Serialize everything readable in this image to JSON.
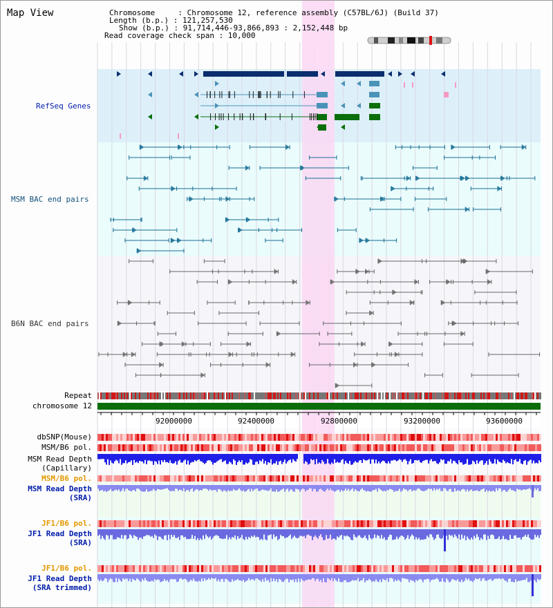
{
  "header": {
    "title": "Map View",
    "info_lines": [
      "Chromosome     : Chromosome 12, reference assembly (C57BL/6J) (Build 37)",
      "Length (b.p.) : 121,257,530",
      "Show (b.p.) : 91,714,446-93,866,893 : 2,152,448 bp",
      "Read coverage check span : 10,000"
    ]
  },
  "tracks": {
    "refseq": "RefSeq Genes",
    "msm_bac": "MSM BAC end pairs",
    "b6n_bac": "B6N BAC end pairs",
    "repeat": "Repeat",
    "chromosome": "chromosome 12",
    "dbsnp": "dbSNP(Mouse)",
    "msm_b6_pol_1": "MSM/B6 pol.",
    "msm_read_depth_cap_1": "MSM Read Depth",
    "msm_read_depth_cap_2": "(Capillary)",
    "msm_b6_pol_2": "MSM/B6 pol.",
    "msm_read_depth_sra_1": "MSM Read Depth",
    "msm_read_depth_sra_2": "(SRA)",
    "jf1_b6_pol_1": "JF1/B6 pol.",
    "jf1_read_depth_sra_1": "JF1 Read Depth",
    "jf1_read_depth_sra_2": "(SRA)",
    "jf1_b6_pol_2": "JF1/B6 pol.",
    "jf1_read_depth_trim_1": "JF1 Read Depth",
    "jf1_read_depth_trim_2": "(SRA trimmed)"
  },
  "axis": {
    "ticks": [
      "92000000",
      "92400000",
      "92800000",
      "93200000",
      "93600000"
    ]
  },
  "colors": {
    "highlight": "#fad8f3",
    "refseq_bg": "#ddf0fa",
    "msm_bac_bg": "#eafcfc",
    "gene_dark": "#0a2e6e",
    "gene_teal": "#4a93b8",
    "gene_green": "#0b6e0b",
    "msm_bac_line": "#176d94",
    "b6n_bac_line": "#666666",
    "chromosome": "#0b6e0b",
    "label_blue": "#001caa",
    "label_teal": "#11507a",
    "label_orange": "#e29800"
  }
}
